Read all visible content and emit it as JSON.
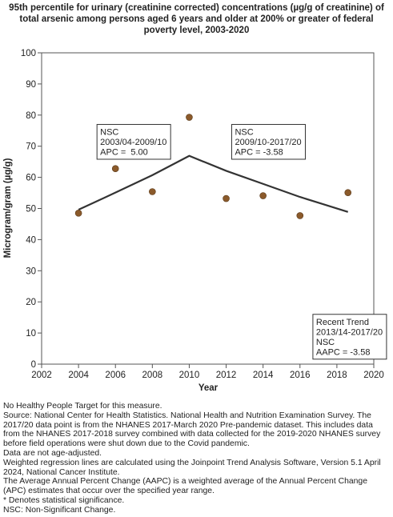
{
  "chart_data": {
    "type": "scatter",
    "title": "95th percentile for urinary (creatinine corrected) concentrations (µg/g of creatinine) of\ntotal arsenic among persons aged 6 years and older at 200% or greater of federal\npoverty level, 2003-2020",
    "xlabel": "Year",
    "ylabel": "Microgram/gram (µg/g)",
    "xlim": [
      2002,
      2020
    ],
    "ylim": [
      0,
      100
    ],
    "x_ticks": [
      2002,
      2004,
      2006,
      2008,
      2010,
      2012,
      2014,
      2016,
      2018,
      2020
    ],
    "y_ticks": [
      0,
      10,
      20,
      30,
      40,
      50,
      60,
      70,
      80,
      90,
      100
    ],
    "grid": false,
    "legend": "none",
    "point_color": "#8B5A2B",
    "line_color": "#333333",
    "points": [
      {
        "x": 2004,
        "y": 48.5
      },
      {
        "x": 2006,
        "y": 62.8
      },
      {
        "x": 2008,
        "y": 55.4
      },
      {
        "x": 2010,
        "y": 79.3
      },
      {
        "x": 2012,
        "y": 53.2
      },
      {
        "x": 2014,
        "y": 54.1
      },
      {
        "x": 2016,
        "y": 47.7
      },
      {
        "x": 2018.6,
        "y": 55.1
      }
    ],
    "trend_line": [
      {
        "x": 2004,
        "y": 49.6
      },
      {
        "x": 2006,
        "y": 55.1
      },
      {
        "x": 2008,
        "y": 60.7
      },
      {
        "x": 2010,
        "y": 66.9
      },
      {
        "x": 2012,
        "y": 62.1
      },
      {
        "x": 2014,
        "y": 57.9
      },
      {
        "x": 2016,
        "y": 53.7
      },
      {
        "x": 2018.6,
        "y": 48.9
      }
    ],
    "annotations": [
      {
        "lines": [
          "NSC",
          "2003/04-2009/10",
          "APC =  5.00"
        ],
        "anchor_x": 2005.0,
        "anchor_y": 77.0
      },
      {
        "lines": [
          "NSC",
          "2009/10-2017/20",
          "APC = -3.58"
        ],
        "anchor_x": 2012.3,
        "anchor_y": 77.0
      },
      {
        "lines": [
          "Recent Trend",
          "2013/14-2017/20",
          "NSC",
          "AAPC = -3.58"
        ],
        "anchor_x": 2016.7,
        "anchor_y": 16.0
      }
    ]
  },
  "notes": [
    "No Healthy People Target for this measure.",
    "Source: National Center for Health Statistics. National Health and Nutrition Examination Survey. The 2017/20 data point is from the NHANES 2017-March 2020 Pre-pandemic dataset. This includes data from the NHANES 2017-2018 survey combined with data collected for the 2019-2020 NHANES survey before field operations were shut down due to the Covid pandemic.",
    "Data are not age-adjusted.",
    "Weighted regression lines are calculated using the Joinpoint Trend Analysis Software, Version 5.1 April 2024, National Cancer Institute.",
    "The Average Annual Percent Change (AAPC) is a weighted average of the Annual Percent Change (APC) estimates that occur over the specified year range.",
    "* Denotes statistical significance.",
    "NSC: Non-Significant Change."
  ]
}
